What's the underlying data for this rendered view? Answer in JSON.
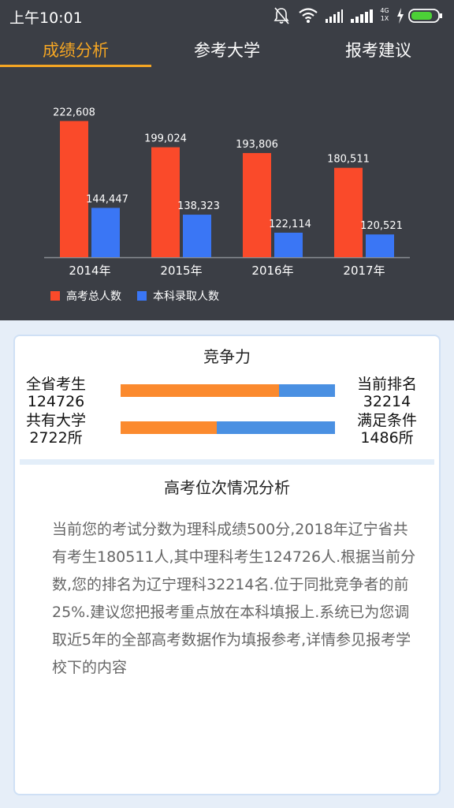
{
  "status_bar": {
    "time": "上午10:01",
    "network_label_top": "4G",
    "network_label_bottom": "1X",
    "icons": [
      "bell-muted-icon",
      "wifi-icon",
      "signal-icon",
      "signal-icon",
      "charging-icon",
      "battery-icon"
    ],
    "battery_color": "#4cd137"
  },
  "tabs": [
    {
      "label": "成绩分析",
      "active": true
    },
    {
      "label": "参考大学",
      "active": false
    },
    {
      "label": "报考建议",
      "active": false
    }
  ],
  "accent_color": "#f5a623",
  "chart_data": {
    "type": "bar",
    "categories": [
      "2014年",
      "2015年",
      "2016年",
      "2017年"
    ],
    "series": [
      {
        "name": "高考总人数",
        "values": [
          222608,
          199024,
          193806,
          180511
        ],
        "color": "#fa4a2a"
      },
      {
        "name": "本科录取人数",
        "values": [
          144447,
          138323,
          122114,
          120521
        ],
        "color": "#3a76f5"
      }
    ],
    "data_labels": [
      [
        "222,608",
        "199,024",
        "193,806",
        "180,511"
      ],
      [
        "144,447",
        "138,323",
        "122,114",
        "120,521"
      ]
    ],
    "ylim": [
      100000,
      230000
    ],
    "grid": false,
    "legend": "bottom-left"
  },
  "competitiveness": {
    "title": "竞争力",
    "rows": [
      {
        "left_label": "全省考生",
        "left_value": "124726",
        "right_label": "当前排名",
        "right_value": "32214",
        "fill_fraction": 0.74
      },
      {
        "left_label": "共有大学",
        "left_value": "2722所",
        "right_label": "满足条件",
        "right_value": "1486所",
        "fill_fraction": 0.45
      }
    ],
    "fill_color": "#fb8a2e",
    "track_color": "#4a90e2"
  },
  "analysis": {
    "title": "高考位次情况分析",
    "text": "当前您的考试分数为理科成绩500分,2018年辽宁省共有考生180511人,其中理科考生124726人.根据当前分数,您的排名为辽宁理科32214名.位于同批竞争者的前25%.建议您把报考重点放在本科填报上.系统已为您调取近5年的全部高考数据作为填报参考,详情参见报考学校下的内容"
  }
}
